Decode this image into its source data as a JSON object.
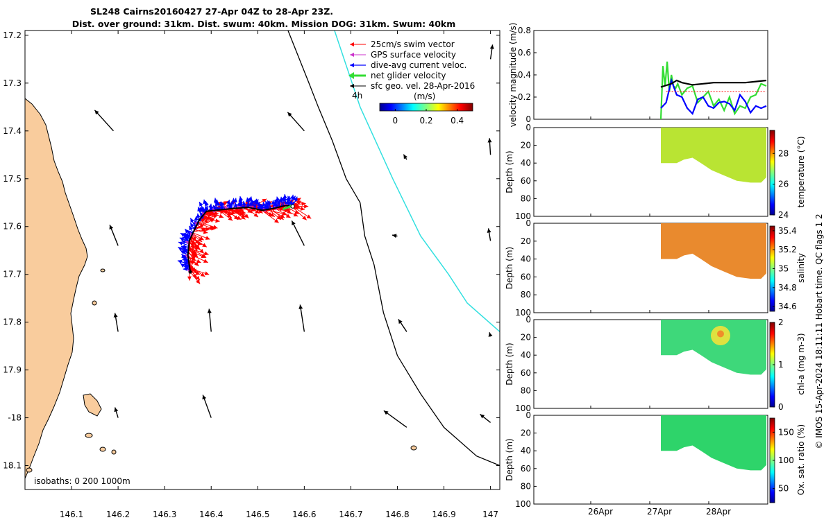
{
  "title_line1": "SL248 Cairns20160427 27-Apr 04Z to 28-Apr 23Z.",
  "title_line2": "Dist. over ground: 31km. Dist. swum: 40km. Mission DOG: 31km. Swum: 40km",
  "credit": "© IMOS 15-Apr-2024 18:11:11 Hobart time. QC flags 1  2",
  "colors": {
    "land": "#f9cc9d",
    "swim_vector": "#ff0000",
    "gps_velocity": "#cc33cc",
    "dive_avg_current": "#0000ff",
    "net_glider": "#33dd33",
    "sfc_geo": "#000000",
    "cyan_track": "#33e0e0"
  },
  "chart_data": [
    {
      "id": "map",
      "type": "scatter",
      "xlim": [
        146.0,
        147.02
      ],
      "ylim": [
        -18.15,
        -17.19
      ],
      "x_ticks": [
        146.1,
        146.2,
        146.3,
        146.4,
        146.5,
        146.6,
        146.7,
        146.8,
        146.9,
        147
      ],
      "x_tick_labels": [
        "146.1",
        "146.2",
        "146.3",
        "146.4",
        "146.5",
        "146.6",
        "146.7",
        "146.8",
        "146.9",
        "147"
      ],
      "y_ticks": [
        -17.2,
        -17.3,
        -17.4,
        -17.5,
        -17.6,
        -17.7,
        -17.8,
        -17.9,
        -18.0,
        -18.1
      ],
      "y_tick_labels": [
        "17.2",
        "17.3",
        "17.4",
        "17.5",
        "17.6",
        "17.7",
        "17.8",
        "17.9",
        "-18",
        "18.1"
      ],
      "legend": {
        "placement": "top-right",
        "entries": [
          "25cm/s swim vector",
          "GPS surface velocity",
          "dive-avg current veloc.",
          "net glider velocity",
          "sfc geo. vel. 28-Apr-2016"
        ],
        "time_label": "4h"
      },
      "colorbar": {
        "label": "(m/s)",
        "range": [
          -0.1,
          0.5
        ],
        "ticks": [
          0,
          0.2,
          0.4
        ],
        "tick_labels": [
          "0",
          "0.2",
          "0.4"
        ]
      },
      "isobaths_label": "isobaths: 0   200   1000m",
      "glider_track": [
        [
          146.355,
          -17.695
        ],
        [
          146.35,
          -17.66
        ],
        [
          146.353,
          -17.63
        ],
        [
          146.36,
          -17.615
        ],
        [
          146.375,
          -17.585
        ],
        [
          146.39,
          -17.568
        ],
        [
          146.42,
          -17.565
        ],
        [
          146.45,
          -17.562
        ],
        [
          146.48,
          -17.56
        ],
        [
          146.51,
          -17.566
        ],
        [
          146.535,
          -17.562
        ],
        [
          146.56,
          -17.556
        ],
        [
          146.575,
          -17.558
        ]
      ],
      "isobath_200m": [
        [
          146.565,
          -17.19
        ],
        [
          146.61,
          -17.3
        ],
        [
          146.63,
          -17.35
        ],
        [
          146.66,
          -17.42
        ],
        [
          146.69,
          -17.5
        ],
        [
          146.72,
          -17.55
        ],
        [
          146.73,
          -17.62
        ],
        [
          146.75,
          -17.68
        ],
        [
          146.77,
          -17.78
        ],
        [
          146.8,
          -17.87
        ],
        [
          146.85,
          -17.95
        ],
        [
          146.9,
          -18.02
        ],
        [
          146.97,
          -18.08
        ],
        [
          147.02,
          -18.1
        ]
      ],
      "cyan_track": [
        [
          146.665,
          -17.19
        ],
        [
          146.72,
          -17.35
        ],
        [
          146.79,
          -17.5
        ],
        [
          146.85,
          -17.62
        ],
        [
          146.91,
          -17.7
        ],
        [
          146.95,
          -17.76
        ],
        [
          147.02,
          -17.82
        ]
      ],
      "sfc_geo_arrows": [
        {
          "lon": 146.08,
          "lat": -17.22,
          "u": 0.0,
          "v": 0.0
        },
        {
          "lon": 146.19,
          "lat": -17.4,
          "u": -0.18,
          "v": 0.2
        },
        {
          "lon": 146.2,
          "lat": -17.64,
          "u": -0.08,
          "v": 0.2
        },
        {
          "lon": 146.2,
          "lat": -17.82,
          "u": -0.03,
          "v": 0.18
        },
        {
          "lon": 146.2,
          "lat": -18.0,
          "u": -0.03,
          "v": 0.1
        },
        {
          "lon": 146.4,
          "lat": -18.0,
          "u": -0.08,
          "v": 0.22
        },
        {
          "lon": 146.4,
          "lat": -17.82,
          "u": -0.02,
          "v": 0.22
        },
        {
          "lon": 146.6,
          "lat": -17.4,
          "u": -0.16,
          "v": 0.18
        },
        {
          "lon": 146.6,
          "lat": -17.64,
          "u": -0.12,
          "v": 0.24
        },
        {
          "lon": 146.6,
          "lat": -17.82,
          "u": -0.04,
          "v": 0.26
        },
        {
          "lon": 146.6,
          "lat": -17.19,
          "u": -0.1,
          "v": 0.05
        },
        {
          "lon": 146.82,
          "lat": -17.46,
          "u": -0.03,
          "v": 0.05
        },
        {
          "lon": 146.8,
          "lat": -17.62,
          "u": -0.05,
          "v": 0.01
        },
        {
          "lon": 146.82,
          "lat": -17.82,
          "u": -0.08,
          "v": 0.12
        },
        {
          "lon": 146.82,
          "lat": -18.02,
          "u": -0.22,
          "v": 0.16
        },
        {
          "lon": 147.0,
          "lat": -17.25,
          "u": 0.02,
          "v": 0.14
        },
        {
          "lon": 147.0,
          "lat": -17.45,
          "u": -0.01,
          "v": 0.16
        },
        {
          "lon": 147.0,
          "lat": -17.63,
          "u": -0.02,
          "v": 0.12
        },
        {
          "lon": 147.0,
          "lat": -17.83,
          "u": -0.01,
          "v": 0.04
        },
        {
          "lon": 147.0,
          "lat": -18.01,
          "u": -0.1,
          "v": 0.08
        }
      ]
    },
    {
      "id": "velocity",
      "type": "line",
      "ylabel": "velocity magnitude (m/s)",
      "ylim": [
        0,
        0.8
      ],
      "y_ticks": [
        0,
        0.2,
        0.4,
        0.6,
        0.8
      ],
      "y_tick_labels": [
        "0",
        "0.2",
        "0.4",
        "0.6",
        "0.8"
      ],
      "x_ticks": [
        "26Apr",
        "27Apr",
        "28Apr"
      ],
      "series": [
        {
          "color": "#33dd33",
          "t": [
            0.0,
            0.02,
            0.04,
            0.06,
            0.08,
            0.1,
            0.12,
            0.14,
            0.16,
            0.2,
            0.25,
            0.3,
            0.35,
            0.4,
            0.45,
            0.5,
            0.55,
            0.6,
            0.65,
            0.7,
            0.75,
            0.8,
            0.85,
            0.9,
            0.95,
            1.0
          ],
          "v": [
            0.0,
            0.48,
            0.3,
            0.52,
            0.25,
            0.4,
            0.3,
            0.28,
            0.32,
            0.22,
            0.28,
            0.3,
            0.15,
            0.2,
            0.25,
            0.12,
            0.18,
            0.08,
            0.2,
            0.05,
            0.12,
            0.1,
            0.2,
            0.22,
            0.32,
            0.3
          ]
        },
        {
          "color": "#0000ff",
          "t": [
            0.0,
            0.05,
            0.1,
            0.15,
            0.2,
            0.25,
            0.3,
            0.35,
            0.4,
            0.45,
            0.5,
            0.55,
            0.6,
            0.65,
            0.7,
            0.75,
            0.8,
            0.85,
            0.9,
            0.95,
            1.0
          ],
          "v": [
            0.1,
            0.15,
            0.35,
            0.22,
            0.2,
            0.1,
            0.05,
            0.18,
            0.2,
            0.12,
            0.1,
            0.15,
            0.16,
            0.14,
            0.08,
            0.22,
            0.16,
            0.06,
            0.12,
            0.1,
            0.12
          ]
        },
        {
          "color": "#000000",
          "t": [
            0.0,
            0.1,
            0.15,
            0.2,
            0.3,
            0.4,
            0.5,
            0.6,
            0.7,
            0.8,
            0.9,
            1.0
          ],
          "v": [
            0.29,
            0.32,
            0.35,
            0.33,
            0.31,
            0.32,
            0.33,
            0.33,
            0.33,
            0.33,
            0.34,
            0.35
          ]
        },
        {
          "color": "#ff0000",
          "t": [
            0.05,
            0.2,
            0.4,
            0.6,
            0.8,
            1.0
          ],
          "v": [
            0.25,
            0.25,
            0.25,
            0.25,
            0.25,
            0.25
          ]
        }
      ]
    },
    {
      "id": "temperature",
      "type": "heatmap",
      "ylabel": "Depth (m)",
      "cbar_label": "temperature (°C)",
      "ylim": [
        100,
        0
      ],
      "y_ticks": [
        0,
        20,
        40,
        60,
        80,
        100
      ],
      "cbar_ticks": [
        "24",
        "26",
        "28"
      ],
      "cbar_range": [
        24,
        29.5
      ],
      "value": 27.5
    },
    {
      "id": "salinity",
      "type": "heatmap",
      "ylabel": "Depth (m)",
      "cbar_label": "salinity",
      "ylim": [
        100,
        0
      ],
      "y_ticks": [
        0,
        20,
        40,
        60,
        80,
        100
      ],
      "cbar_ticks": [
        "34.6",
        "34.8",
        "35",
        "35.2",
        "35.4"
      ],
      "cbar_range": [
        34.55,
        35.45
      ],
      "value": 35.3
    },
    {
      "id": "chla",
      "type": "heatmap",
      "ylabel": "Depth (m)",
      "cbar_label": "chl-a (mg m-3)",
      "ylim": [
        100,
        0
      ],
      "y_ticks": [
        0,
        20,
        40,
        60,
        80,
        100
      ],
      "cbar_ticks": [
        "0",
        "1",
        "2"
      ],
      "cbar_range": [
        0,
        2
      ],
      "value": 0.75
    },
    {
      "id": "oxygen",
      "type": "heatmap",
      "ylabel": "Depth (m)",
      "cbar_label": "Ox. sat. ratio (%)",
      "ylim": [
        100,
        0
      ],
      "y_ticks": [
        0,
        20,
        40,
        60,
        80,
        100
      ],
      "cbar_ticks": [
        "50",
        "100",
        "150"
      ],
      "cbar_range": [
        25,
        175
      ],
      "value": 100
    }
  ]
}
